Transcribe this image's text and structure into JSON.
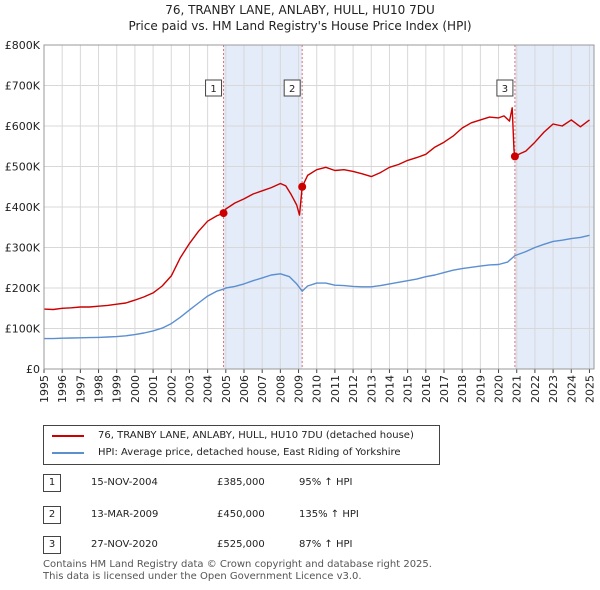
{
  "title_line1": "76, TRANBY LANE, ANLABY, HULL, HU10 7DU",
  "title_line2": "Price paid vs. HM Land Registry's House Price Index (HPI)",
  "colors": {
    "property": "#cc0000",
    "hpi": "#5b8fd0",
    "shade": "#dde6f7",
    "grid": "#d8d8d8",
    "vline": "#e07070"
  },
  "legend": {
    "property": "76, TRANBY LANE, ANLABY, HULL, HU10 7DU (detached house)",
    "hpi": "HPI: Average price, detached house, East Riding of Yorkshire"
  },
  "transactions": [
    {
      "num": "1",
      "date": "15-NOV-2004",
      "price": "£385,000",
      "hpi": "95% ↑ HPI"
    },
    {
      "num": "2",
      "date": "13-MAR-2009",
      "price": "£450,000",
      "hpi": "135% ↑ HPI"
    },
    {
      "num": "3",
      "date": "27-NOV-2020",
      "price": "£525,000",
      "hpi": "87% ↑ HPI"
    }
  ],
  "footer": {
    "line1": "Contains HM Land Registry data © Crown copyright and database right 2025.",
    "line2": "This data is licensed under the Open Government Licence v3.0."
  },
  "chart_data": {
    "type": "line",
    "title": "76, TRANBY LANE, ANLABY, HULL, HU10 7DU",
    "subtitle": "Price paid vs. HM Land Registry's House Price Index (HPI)",
    "xlabel": "",
    "ylabel": "",
    "xlim": [
      1995,
      2025.25
    ],
    "ylim": [
      0,
      800000
    ],
    "x_ticks": [
      "1995",
      "1996",
      "1997",
      "1998",
      "1999",
      "2000",
      "2001",
      "2002",
      "2003",
      "2004",
      "2005",
      "2006",
      "2007",
      "2008",
      "2009",
      "2010",
      "2011",
      "2012",
      "2013",
      "2014",
      "2015",
      "2016",
      "2017",
      "2018",
      "2019",
      "2020",
      "2021",
      "2022",
      "2023",
      "2024",
      "2025"
    ],
    "y_ticks": [
      {
        "value": 0,
        "label": "£0"
      },
      {
        "value": 100000,
        "label": "£100K"
      },
      {
        "value": 200000,
        "label": "£200K"
      },
      {
        "value": 300000,
        "label": "£300K"
      },
      {
        "value": 400000,
        "label": "£400K"
      },
      {
        "value": 500000,
        "label": "£500K"
      },
      {
        "value": 600000,
        "label": "£600K"
      },
      {
        "value": 700000,
        "label": "£700K"
      },
      {
        "value": 800000,
        "label": "£800K"
      }
    ],
    "grid": true,
    "shaded_ranges": [
      [
        2004.875,
        2009.2
      ],
      [
        2020.9,
        2025.25
      ]
    ],
    "markers": [
      {
        "label": "1",
        "x": 2004.875,
        "y": 385000
      },
      {
        "label": "2",
        "x": 2009.2,
        "y": 450000
      },
      {
        "label": "3",
        "x": 2020.9,
        "y": 525000
      }
    ],
    "series": [
      {
        "name": "76, TRANBY LANE, ANLABY, HULL, HU10 7DU (detached house)",
        "x": [
          1995,
          1995.5,
          1996,
          1996.5,
          1997,
          1997.5,
          1998,
          1998.5,
          1999,
          1999.5,
          2000,
          2000.5,
          2001,
          2001.5,
          2002,
          2002.5,
          2003,
          2003.5,
          2004,
          2004.5,
          2004.875,
          2005,
          2005.5,
          2006,
          2006.5,
          2007,
          2007.5,
          2008,
          2008.3,
          2008.6,
          2008.9,
          2009.05,
          2009.2,
          2009.5,
          2010,
          2010.5,
          2011,
          2011.5,
          2012,
          2012.5,
          2013,
          2013.5,
          2014,
          2014.5,
          2015,
          2015.5,
          2016,
          2016.5,
          2017,
          2017.5,
          2018,
          2018.5,
          2019,
          2019.5,
          2020,
          2020.3,
          2020.6,
          2020.75,
          2020.85,
          2020.9,
          2021.2,
          2021.5,
          2022,
          2022.5,
          2023,
          2023.5,
          2024,
          2024.5,
          2025
        ],
        "values": [
          148000,
          147000,
          150000,
          151000,
          153000,
          153000,
          155000,
          157000,
          160000,
          163000,
          170000,
          178000,
          188000,
          205000,
          230000,
          275000,
          310000,
          340000,
          365000,
          378000,
          385000,
          395000,
          410000,
          420000,
          432000,
          440000,
          448000,
          458000,
          452000,
          430000,
          405000,
          380000,
          450000,
          478000,
          492000,
          498000,
          490000,
          492000,
          488000,
          482000,
          475000,
          485000,
          498000,
          505000,
          515000,
          522000,
          530000,
          548000,
          560000,
          575000,
          595000,
          608000,
          615000,
          622000,
          620000,
          625000,
          612000,
          645000,
          540000,
          525000,
          532000,
          538000,
          560000,
          585000,
          605000,
          600000,
          615000,
          598000,
          615000
        ]
      },
      {
        "name": "HPI: Average price, detached house, East Riding of Yorkshire",
        "x": [
          1995,
          1995.5,
          1996,
          1996.5,
          1997,
          1997.5,
          1998,
          1998.5,
          1999,
          1999.5,
          2000,
          2000.5,
          2001,
          2001.5,
          2002,
          2002.5,
          2003,
          2003.5,
          2004,
          2004.5,
          2004.875,
          2005,
          2005.5,
          2006,
          2006.5,
          2007,
          2007.5,
          2008,
          2008.5,
          2008.9,
          2009.2,
          2009.5,
          2010,
          2010.5,
          2011,
          2011.5,
          2012,
          2012.5,
          2013,
          2013.5,
          2014,
          2014.5,
          2015,
          2015.5,
          2016,
          2016.5,
          2017,
          2017.5,
          2018,
          2018.5,
          2019,
          2019.5,
          2020,
          2020.5,
          2020.9,
          2021.5,
          2022,
          2022.5,
          2023,
          2023.5,
          2024,
          2024.5,
          2025
        ],
        "values": [
          75000,
          75000,
          76000,
          76500,
          77000,
          77500,
          78000,
          79000,
          80000,
          82000,
          85000,
          89000,
          94000,
          101000,
          112000,
          128000,
          146000,
          163000,
          180000,
          192000,
          197000,
          200000,
          204000,
          210000,
          218000,
          225000,
          232000,
          235000,
          228000,
          210000,
          192000,
          205000,
          212000,
          212000,
          207000,
          206000,
          204000,
          203000,
          203000,
          206000,
          210000,
          214000,
          218000,
          222000,
          228000,
          232000,
          238000,
          244000,
          248000,
          251000,
          254000,
          257000,
          258000,
          264000,
          280000,
          290000,
          300000,
          308000,
          315000,
          318000,
          322000,
          325000,
          330000
        ]
      }
    ]
  }
}
